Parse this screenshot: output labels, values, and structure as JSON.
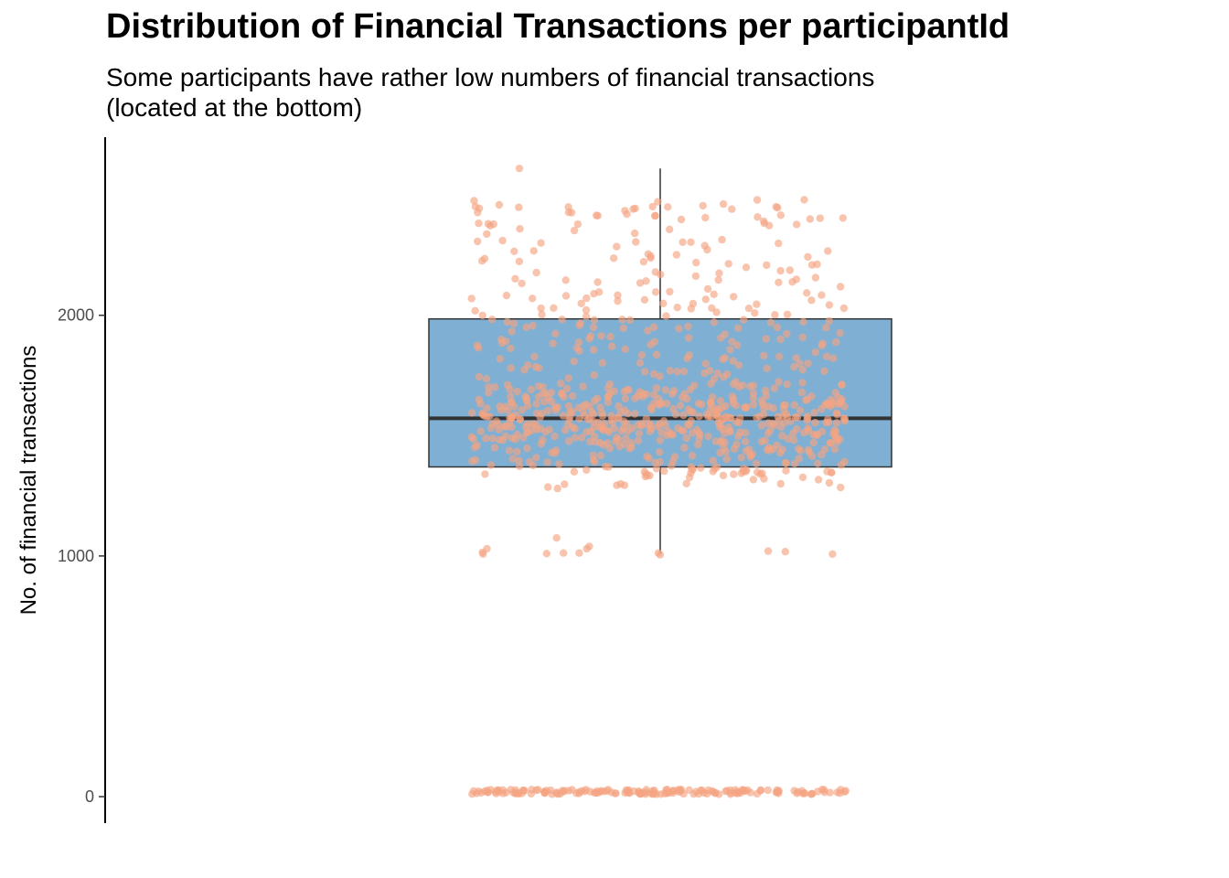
{
  "chart_data": {
    "type": "boxplot",
    "title": "Distribution of Financial Transactions per participantId",
    "subtitle": [
      "Some participants have rather low numbers of financial transactions",
      "(located at the bottom)"
    ],
    "xlabel": "",
    "ylabel": "No. of financial transactions",
    "ylim": [
      -110,
      2740
    ],
    "yticks": [
      0,
      1000,
      2000
    ],
    "grid": false,
    "legend": "none",
    "box": {
      "whisker_low": 1010,
      "q1": 1370,
      "median": 1572,
      "q3": 1985,
      "whisker_high": 2610
    },
    "jitter": {
      "count_main": 760,
      "count_low": 170,
      "low_value_range": [
        10,
        30
      ]
    },
    "colors": {
      "box_fill": "#7fb0d4",
      "box_line": "#333333",
      "points": "#f4a582",
      "axis": "#000000"
    }
  }
}
